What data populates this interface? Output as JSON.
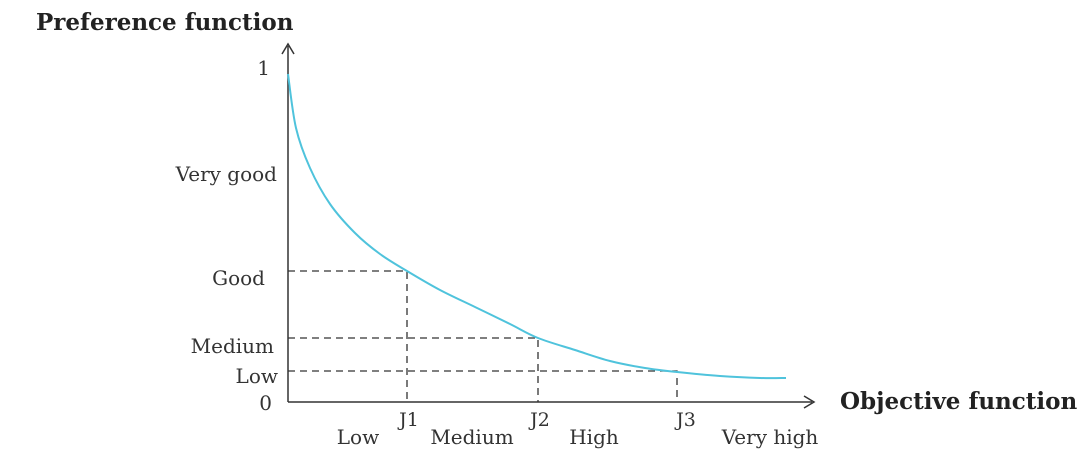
{
  "diagram": {
    "y_axis_title": "Preference function",
    "x_axis_title": "Objective function",
    "y_labels": {
      "one": "1",
      "very_good": "Very good",
      "good": "Good",
      "medium": "Medium",
      "low": "Low",
      "zero": "0"
    },
    "x_ticks": [
      "J1",
      "J2",
      "J3"
    ],
    "x_regions": [
      "Low",
      "Medium",
      "High",
      "Very high"
    ],
    "colors": {
      "curve": "#4fc3dc",
      "axis": "#333333"
    }
  }
}
